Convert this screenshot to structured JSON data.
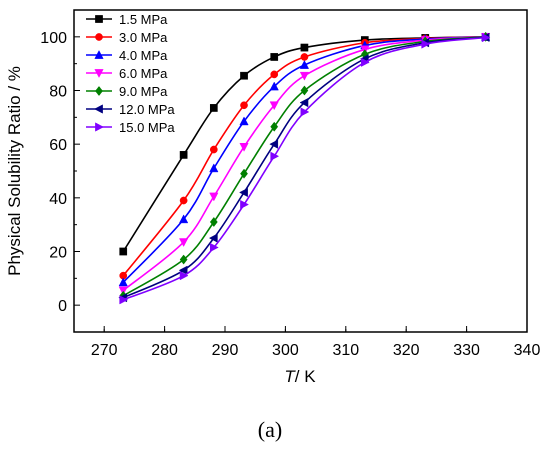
{
  "chart_data": {
    "type": "line",
    "xlabel_italic": "T",
    "xlabel_rest": "/ K",
    "ylabel": "Physical Solubility Ratio / %",
    "panel_label": "(a)",
    "xlim": [
      265,
      340
    ],
    "ylim": [
      -10,
      110
    ],
    "xticks": [
      270,
      280,
      290,
      300,
      310,
      320,
      330,
      340
    ],
    "yticks": [
      0,
      20,
      40,
      60,
      80,
      100
    ],
    "legend_position": "top-left",
    "x": [
      273.15,
      283.15,
      288.15,
      293.15,
      298.15,
      303.15,
      313.15,
      323.15,
      333.15
    ],
    "series": [
      {
        "name": "1.5 MPa",
        "color": "#000000",
        "marker": "square",
        "values": [
          20,
          56,
          73.5,
          85.5,
          92.5,
          96,
          98.8,
          99.6,
          100
        ]
      },
      {
        "name": "3.0 MPa",
        "color": "#ff0000",
        "marker": "circle",
        "values": [
          11,
          39,
          58,
          74.5,
          86,
          92.5,
          97.8,
          99.4,
          100
        ]
      },
      {
        "name": "4.0 MPa",
        "color": "#0000ff",
        "marker": "triangle-up",
        "values": [
          8.5,
          32,
          51,
          68.5,
          81.5,
          89.5,
          96.8,
          99.2,
          100
        ]
      },
      {
        "name": "6.0 MPa",
        "color": "#ff00ff",
        "marker": "triangle-down",
        "values": [
          5.5,
          23.5,
          40.5,
          59,
          74.5,
          85.5,
          95.3,
          98.8,
          100
        ]
      },
      {
        "name": "9.0 MPa",
        "color": "#008000",
        "marker": "diamond",
        "values": [
          3.5,
          17,
          31,
          49,
          66.5,
          80,
          93.5,
          98.3,
          100
        ]
      },
      {
        "name": "12.0 MPa",
        "color": "#000080",
        "marker": "triangle-left",
        "values": [
          2.8,
          13,
          25,
          42,
          60,
          75.5,
          91.8,
          97.8,
          99.8
        ]
      },
      {
        "name": "15.0 MPa",
        "color": "#8000ff",
        "marker": "triangle-right",
        "values": [
          2,
          11,
          21.5,
          37.5,
          55.5,
          72,
          90.5,
          97.3,
          99.7
        ]
      }
    ]
  }
}
